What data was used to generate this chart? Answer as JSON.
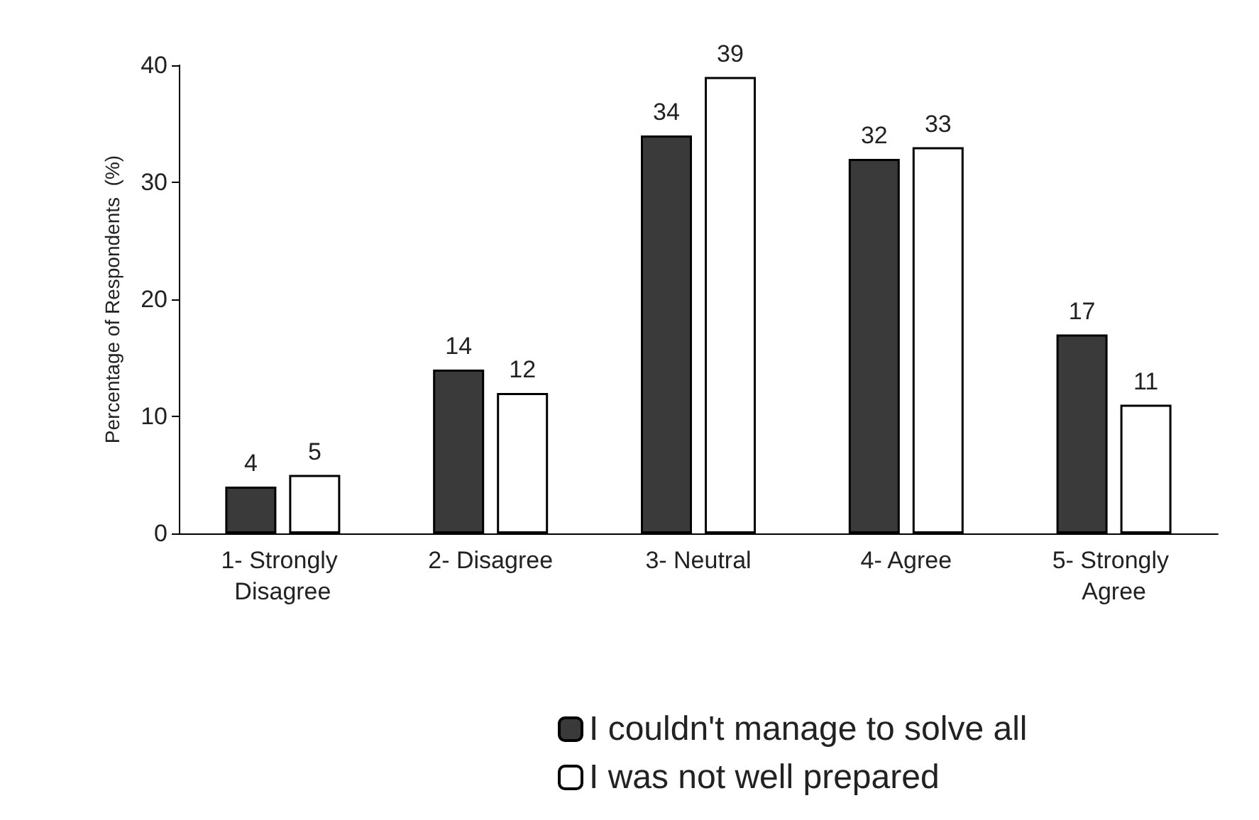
{
  "chart_data": {
    "type": "bar",
    "ylabel": "Percentage of Respondents  (%)",
    "categories": [
      "1- Strongly Disagree",
      "2- Disagree",
      "3- Neutral",
      "4- Agree",
      "5- Strongly Agree"
    ],
    "series": [
      {
        "name": "I couldn't manage to solve all",
        "color": "#3a3a3a",
        "values": [
          4,
          14,
          34,
          32,
          17
        ]
      },
      {
        "name": "I was not well prepared",
        "color": "#ffffff",
        "values": [
          5,
          12,
          39,
          33,
          11
        ]
      }
    ],
    "ylim": [
      0,
      40
    ],
    "yticks": [
      0,
      10,
      20,
      30,
      40
    ],
    "grid": false,
    "legend": "bottom",
    "data_labels": true
  }
}
